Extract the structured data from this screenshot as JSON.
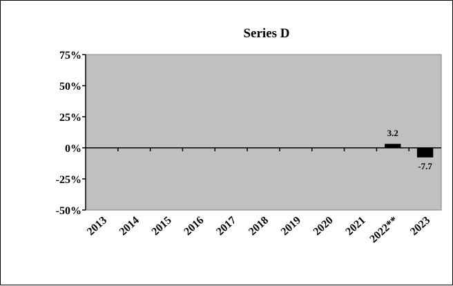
{
  "chart_data": {
    "type": "bar",
    "title": "Series D",
    "xlabel": "",
    "ylabel": "",
    "categories": [
      "2013",
      "2014",
      "2015",
      "2016",
      "2017",
      "2018",
      "2019",
      "2020",
      "2021",
      "2022**",
      "2023"
    ],
    "values": [
      null,
      null,
      null,
      null,
      null,
      null,
      null,
      null,
      null,
      3.2,
      -7.7
    ],
    "data_labels": [
      "",
      "",
      "",
      "",
      "",
      "",
      "",
      "",
      "",
      "3.2",
      "-7.7"
    ],
    "y_ticks": [
      "75%",
      "50%",
      "25%",
      "0%",
      "-25%",
      "-50%"
    ],
    "y_tick_values": [
      75,
      50,
      25,
      0,
      -25,
      -50
    ],
    "ylim": [
      -50,
      75
    ],
    "grid": false,
    "legend": "none",
    "colors": {
      "plot_background": "#c0c0c0",
      "bar": "#000000",
      "axis": "#000000"
    }
  }
}
